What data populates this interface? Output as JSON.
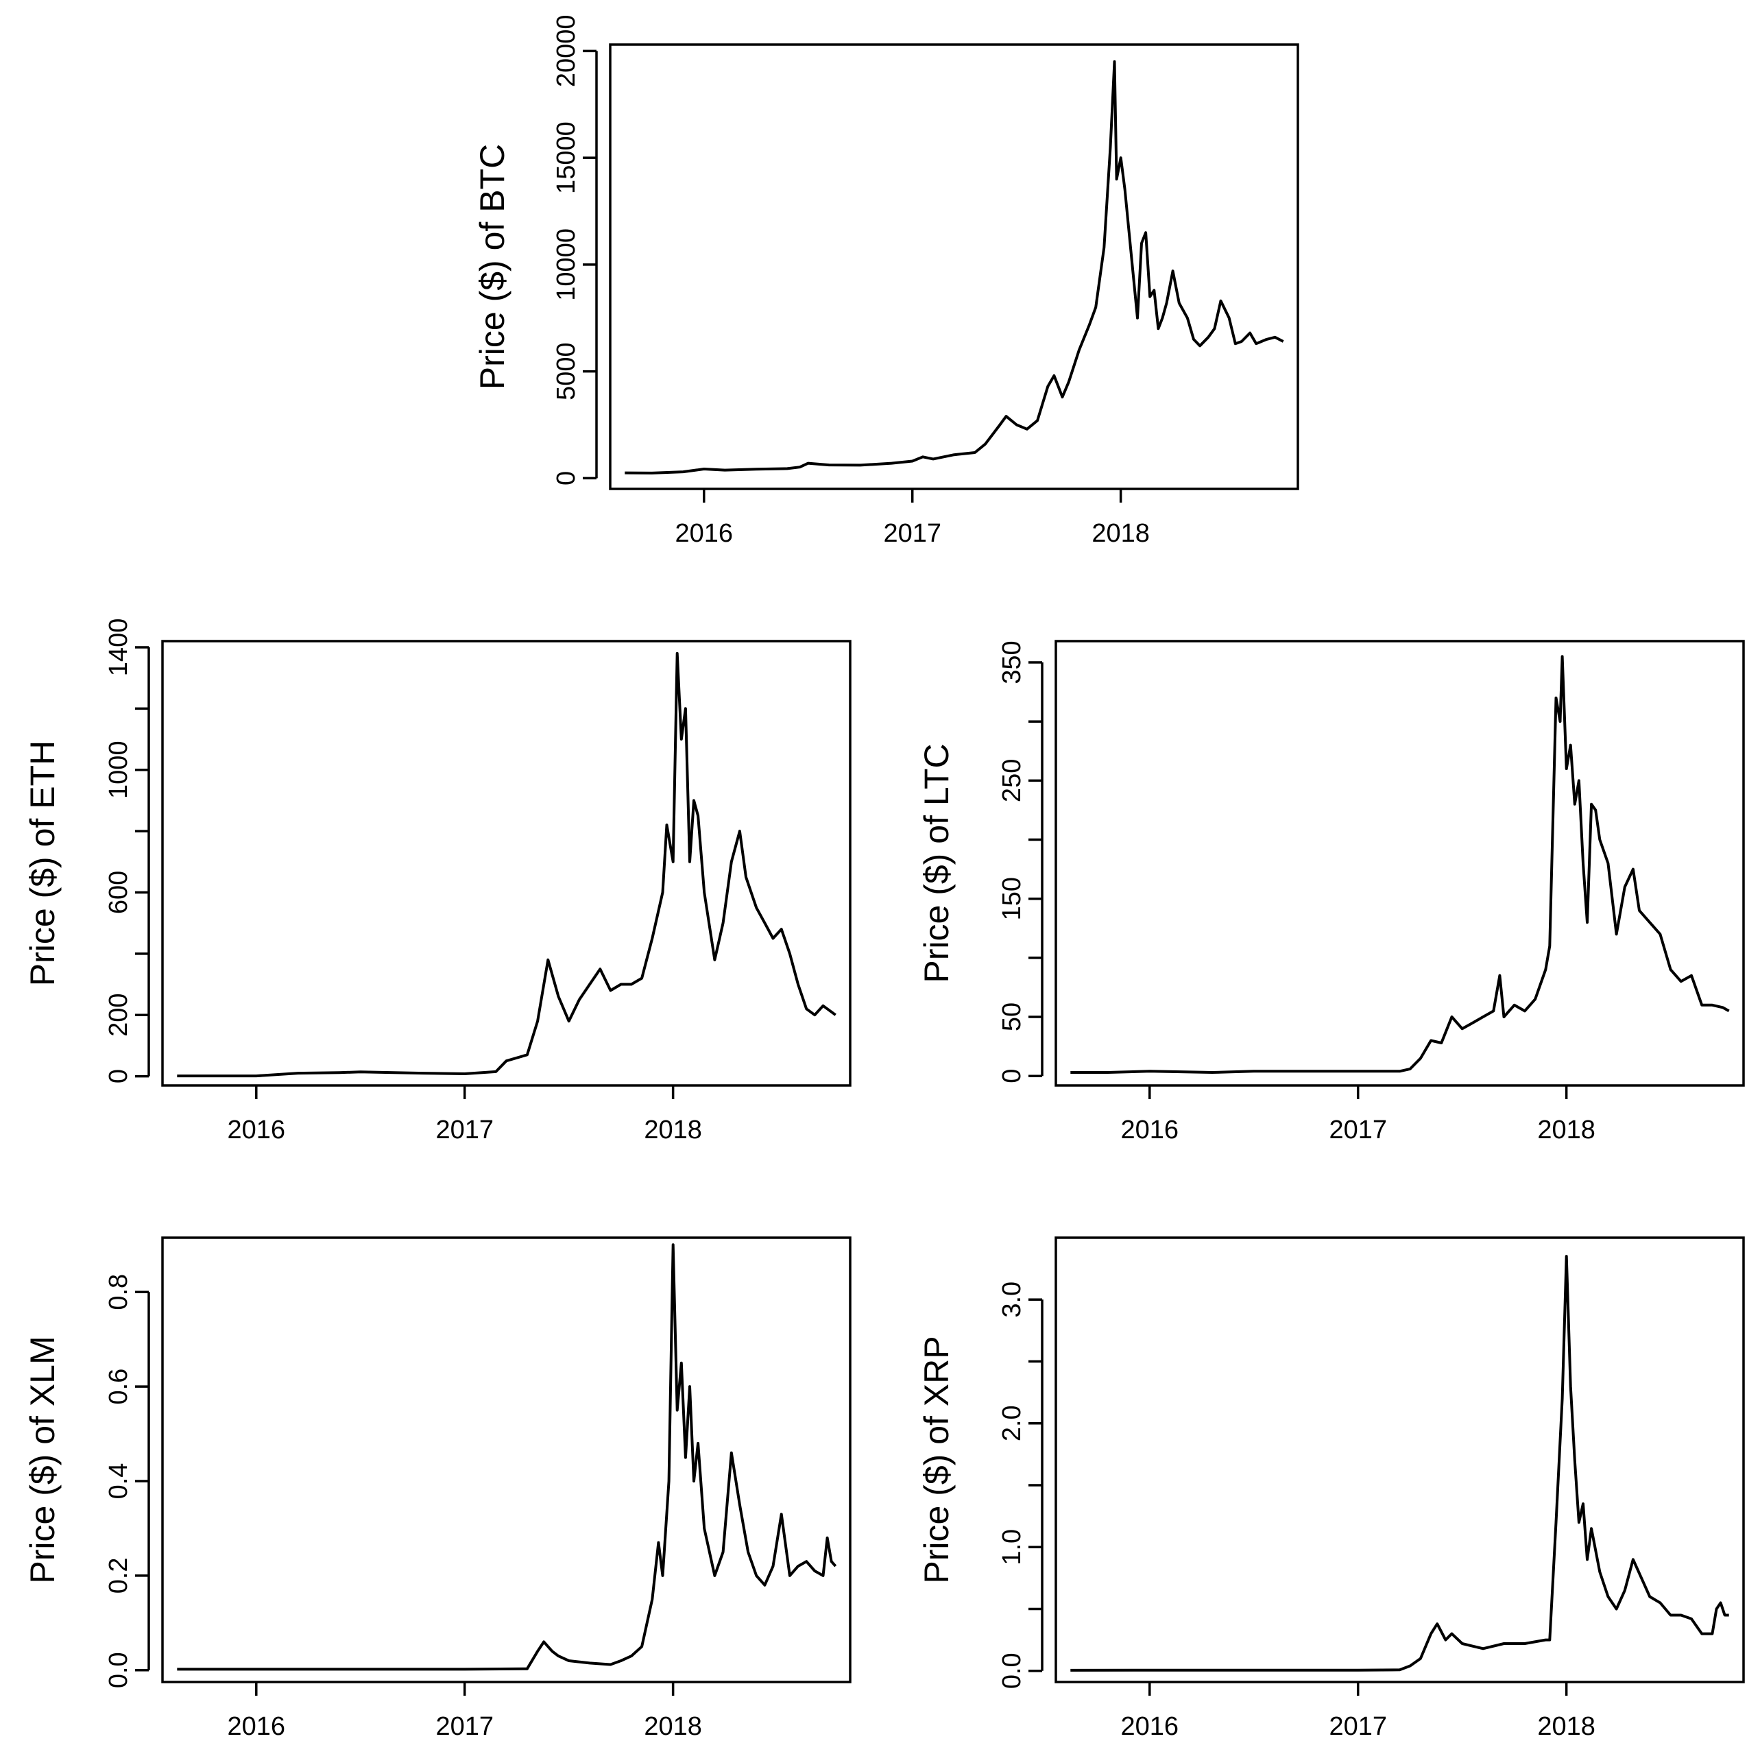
{
  "chart_data": [
    {
      "id": "btc",
      "type": "line",
      "ylabel": "Price ($) of BTC",
      "xlabel": "",
      "xlim": [
        2015.55,
        2018.85
      ],
      "ylim": [
        -500,
        20300
      ],
      "xticks": [
        2016,
        2017,
        2018
      ],
      "xtick_labels": [
        "2016",
        "2017",
        "2018"
      ],
      "yticks": [
        0,
        5000,
        10000,
        15000,
        20000
      ],
      "ytick_labels": [
        "0",
        "5000",
        "10000",
        "15000",
        "20000"
      ],
      "series": [
        {
          "name": "BTC",
          "x": [
            2015.62,
            2015.75,
            2015.9,
            2016.0,
            2016.1,
            2016.25,
            2016.4,
            2016.46,
            2016.5,
            2016.6,
            2016.75,
            2016.9,
            2017.0,
            2017.05,
            2017.1,
            2017.2,
            2017.3,
            2017.35,
            2017.42,
            2017.45,
            2017.5,
            2017.55,
            2017.6,
            2017.65,
            2017.68,
            2017.72,
            2017.75,
            2017.8,
            2017.85,
            2017.88,
            2017.92,
            2017.95,
            2017.97,
            2017.98,
            2018.0,
            2018.02,
            2018.04,
            2018.06,
            2018.08,
            2018.1,
            2018.12,
            2018.14,
            2018.16,
            2018.18,
            2018.2,
            2018.22,
            2018.25,
            2018.28,
            2018.32,
            2018.35,
            2018.38,
            2018.42,
            2018.45,
            2018.48,
            2018.52,
            2018.55,
            2018.58,
            2018.62,
            2018.65,
            2018.7,
            2018.74,
            2018.78
          ],
          "y": [
            250,
            240,
            300,
            430,
            380,
            420,
            450,
            520,
            700,
            620,
            610,
            700,
            800,
            1000,
            900,
            1100,
            1200,
            1600,
            2500,
            2900,
            2500,
            2300,
            2700,
            4300,
            4800,
            3800,
            4500,
            6000,
            7200,
            8000,
            10800,
            15500,
            19500,
            14000,
            15000,
            13500,
            11500,
            9500,
            7500,
            11000,
            11500,
            8500,
            8800,
            7000,
            7500,
            8200,
            9700,
            8200,
            7500,
            6500,
            6200,
            6600,
            7000,
            8300,
            7500,
            6300,
            6400,
            6800,
            6300,
            6500,
            6600,
            6400
          ]
        }
      ]
    },
    {
      "id": "eth",
      "type": "line",
      "ylabel": "Price ($) of ETH",
      "xlabel": "",
      "xlim": [
        2015.55,
        2018.85
      ],
      "ylim": [
        -30,
        1420
      ],
      "xticks": [
        2016,
        2017,
        2018
      ],
      "xtick_labels": [
        "2016",
        "2017",
        "2018"
      ],
      "yticks": [
        0,
        200,
        600,
        1000,
        1400
      ],
      "ytick_labels": [
        "0",
        "200",
        "600",
        "1000",
        "1400"
      ],
      "minor_yticks": [
        400,
        800,
        1200
      ],
      "series": [
        {
          "name": "ETH",
          "x": [
            2015.62,
            2015.8,
            2016.0,
            2016.2,
            2016.4,
            2016.5,
            2016.8,
            2017.0,
            2017.15,
            2017.2,
            2017.3,
            2017.35,
            2017.4,
            2017.45,
            2017.5,
            2017.55,
            2017.6,
            2017.65,
            2017.7,
            2017.75,
            2017.8,
            2017.85,
            2017.9,
            2017.95,
            2017.97,
            2018.0,
            2018.02,
            2018.04,
            2018.06,
            2018.08,
            2018.1,
            2018.12,
            2018.15,
            2018.2,
            2018.24,
            2018.28,
            2018.32,
            2018.35,
            2018.4,
            2018.44,
            2018.48,
            2018.52,
            2018.56,
            2018.6,
            2018.64,
            2018.68,
            2018.72,
            2018.76,
            2018.78
          ],
          "y": [
            1,
            1,
            1,
            10,
            12,
            14,
            10,
            8,
            15,
            50,
            70,
            180,
            380,
            260,
            180,
            250,
            300,
            350,
            280,
            300,
            300,
            320,
            450,
            600,
            820,
            700,
            1380,
            1100,
            1200,
            700,
            900,
            850,
            600,
            380,
            500,
            700,
            800,
            650,
            550,
            500,
            450,
            480,
            400,
            300,
            220,
            200,
            230,
            210,
            200
          ]
        }
      ]
    },
    {
      "id": "ltc",
      "type": "line",
      "ylabel": "Price ($) of LTC",
      "xlabel": "",
      "xlim": [
        2015.55,
        2018.85
      ],
      "ylim": [
        -8,
        368
      ],
      "xticks": [
        2016,
        2017,
        2018
      ],
      "xtick_labels": [
        "2016",
        "2017",
        "2018"
      ],
      "yticks": [
        0,
        50,
        150,
        250,
        350
      ],
      "ytick_labels": [
        "0",
        "50",
        "150",
        "250",
        "350"
      ],
      "minor_yticks": [
        100,
        200,
        300
      ],
      "series": [
        {
          "name": "LTC",
          "x": [
            2015.62,
            2015.8,
            2016.0,
            2016.3,
            2016.5,
            2016.8,
            2017.0,
            2017.2,
            2017.25,
            2017.3,
            2017.35,
            2017.4,
            2017.45,
            2017.5,
            2017.55,
            2017.6,
            2017.65,
            2017.68,
            2017.7,
            2017.75,
            2017.8,
            2017.85,
            2017.9,
            2017.92,
            2017.95,
            2017.97,
            2017.98,
            2018.0,
            2018.02,
            2018.04,
            2018.06,
            2018.08,
            2018.1,
            2018.12,
            2018.14,
            2018.16,
            2018.2,
            2018.24,
            2018.28,
            2018.32,
            2018.35,
            2018.4,
            2018.45,
            2018.5,
            2018.55,
            2018.6,
            2018.65,
            2018.7,
            2018.75,
            2018.78
          ],
          "y": [
            3,
            3,
            4,
            3,
            4,
            4,
            4,
            4,
            6,
            15,
            30,
            28,
            50,
            40,
            45,
            50,
            55,
            85,
            50,
            60,
            55,
            65,
            90,
            110,
            320,
            300,
            355,
            260,
            280,
            230,
            250,
            180,
            130,
            230,
            225,
            200,
            180,
            120,
            160,
            175,
            140,
            130,
            120,
            90,
            80,
            85,
            60,
            60,
            58,
            55
          ]
        }
      ]
    },
    {
      "id": "xlm",
      "type": "line",
      "ylabel": "Price ($) of XLM",
      "xlabel": "",
      "xlim": [
        2015.55,
        2018.85
      ],
      "ylim": [
        -0.025,
        0.915
      ],
      "xticks": [
        2016,
        2017,
        2018
      ],
      "xtick_labels": [
        "2016",
        "2017",
        "2018"
      ],
      "yticks": [
        0.0,
        0.2,
        0.4,
        0.6,
        0.8
      ],
      "ytick_labels": [
        "0.0",
        "0.2",
        "0.4",
        "0.6",
        "0.8"
      ],
      "series": [
        {
          "name": "XLM",
          "x": [
            2015.62,
            2016.0,
            2016.5,
            2017.0,
            2017.3,
            2017.35,
            2017.38,
            2017.42,
            2017.45,
            2017.5,
            2017.6,
            2017.7,
            2017.75,
            2017.8,
            2017.85,
            2017.9,
            2017.93,
            2017.95,
            2017.98,
            2018.0,
            2018.02,
            2018.04,
            2018.06,
            2018.08,
            2018.1,
            2018.12,
            2018.15,
            2018.2,
            2018.24,
            2018.28,
            2018.32,
            2018.36,
            2018.4,
            2018.44,
            2018.48,
            2018.52,
            2018.56,
            2018.6,
            2018.64,
            2018.68,
            2018.72,
            2018.74,
            2018.76,
            2018.78
          ],
          "y": [
            0.002,
            0.002,
            0.002,
            0.002,
            0.003,
            0.04,
            0.06,
            0.04,
            0.03,
            0.02,
            0.015,
            0.012,
            0.02,
            0.03,
            0.05,
            0.15,
            0.27,
            0.2,
            0.4,
            0.9,
            0.55,
            0.65,
            0.45,
            0.6,
            0.4,
            0.48,
            0.3,
            0.2,
            0.25,
            0.46,
            0.35,
            0.25,
            0.2,
            0.18,
            0.22,
            0.33,
            0.2,
            0.22,
            0.23,
            0.21,
            0.2,
            0.28,
            0.23,
            0.22
          ]
        }
      ]
    },
    {
      "id": "xrp",
      "type": "line",
      "ylabel": "Price ($) of XRP",
      "xlabel": "",
      "xlim": [
        2015.55,
        2018.85
      ],
      "ylim": [
        -0.09,
        3.5
      ],
      "xticks": [
        2016,
        2017,
        2018
      ],
      "xtick_labels": [
        "2016",
        "2017",
        "2018"
      ],
      "yticks": [
        0.0,
        1.0,
        2.0,
        3.0
      ],
      "ytick_labels": [
        "0.0",
        "1.0",
        "2.0",
        "3.0"
      ],
      "minor_yticks": [
        0.5,
        1.5,
        2.5
      ],
      "series": [
        {
          "name": "XRP",
          "x": [
            2015.62,
            2016.0,
            2016.5,
            2017.0,
            2017.2,
            2017.25,
            2017.3,
            2017.35,
            2017.38,
            2017.42,
            2017.45,
            2017.5,
            2017.55,
            2017.6,
            2017.7,
            2017.8,
            2017.9,
            2017.92,
            2017.95,
            2017.98,
            2018.0,
            2018.02,
            2018.04,
            2018.06,
            2018.08,
            2018.1,
            2018.12,
            2018.16,
            2018.2,
            2018.24,
            2018.28,
            2018.32,
            2018.36,
            2018.4,
            2018.45,
            2018.5,
            2018.55,
            2018.6,
            2018.65,
            2018.7,
            2018.72,
            2018.74,
            2018.76,
            2018.78
          ],
          "y": [
            0.005,
            0.006,
            0.006,
            0.006,
            0.008,
            0.04,
            0.1,
            0.3,
            0.38,
            0.25,
            0.3,
            0.22,
            0.2,
            0.18,
            0.22,
            0.22,
            0.25,
            0.25,
            1.2,
            2.2,
            3.35,
            2.3,
            1.7,
            1.2,
            1.35,
            0.9,
            1.15,
            0.8,
            0.6,
            0.5,
            0.65,
            0.9,
            0.75,
            0.6,
            0.55,
            0.45,
            0.45,
            0.42,
            0.3,
            0.3,
            0.5,
            0.55,
            0.45,
            0.45
          ]
        }
      ]
    }
  ]
}
